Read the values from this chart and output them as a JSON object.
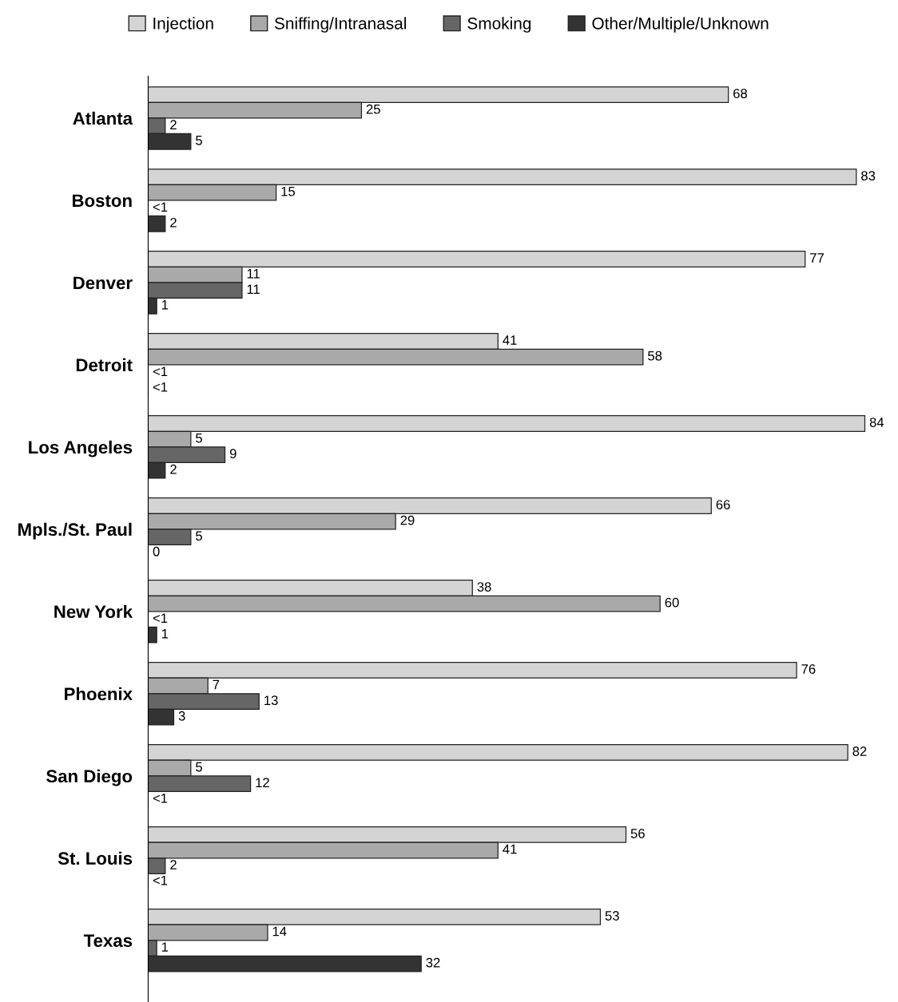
{
  "chart_data": {
    "type": "bar",
    "orientation": "horizontal",
    "legend": "top",
    "grid": false,
    "data_labels": true,
    "categories": [
      "Atlanta",
      "Boston",
      "Denver",
      "Detroit",
      "Los Angeles",
      "Mpls./St. Paul",
      "New York",
      "Phoenix",
      "San Diego",
      "St. Louis",
      "Texas"
    ],
    "series": [
      {
        "name": "Injection",
        "color": "#d4d4d4",
        "values": [
          68,
          83,
          77,
          41,
          84,
          66,
          38,
          76,
          82,
          56,
          53
        ]
      },
      {
        "name": "Sniffing/Intranasal",
        "color": "#a9a9a9",
        "values": [
          25,
          15,
          11,
          58,
          5,
          29,
          60,
          7,
          5,
          41,
          14
        ]
      },
      {
        "name": "Smoking",
        "color": "#666666",
        "values": [
          2,
          0,
          11,
          0,
          9,
          5,
          0,
          13,
          12,
          2,
          1
        ],
        "value_labels": [
          "2",
          "<1",
          "11",
          "<1",
          "9",
          "5",
          "<1",
          "13",
          "12",
          "2",
          "1"
        ]
      },
      {
        "name": "Other/Multiple/Unknown",
        "color": "#333333",
        "values": [
          5,
          2,
          1,
          0,
          2,
          0,
          1,
          3,
          0,
          0,
          32
        ],
        "value_labels": [
          "5",
          "2",
          "1",
          "<1",
          "2",
          "0",
          "1",
          "3",
          "<1",
          "<1",
          "32"
        ]
      }
    ]
  }
}
